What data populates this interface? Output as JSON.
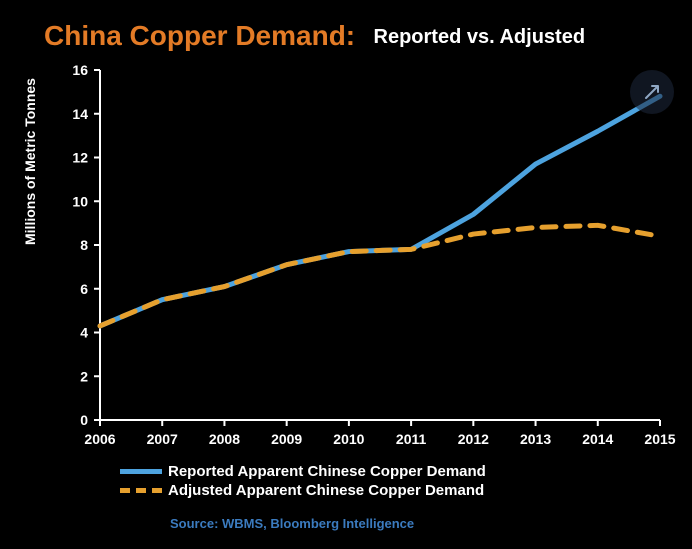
{
  "title": {
    "main": "China Copper Demand:",
    "sub": "Reported vs. Adjusted",
    "main_color": "#e37b26",
    "sub_color": "#ffffff",
    "main_fontsize": 28,
    "sub_fontsize": 20
  },
  "chart": {
    "type": "line",
    "background_color": "#000000",
    "ylabel": "Millions of Metric Tonnes",
    "ylabel_fontsize": 14,
    "ylim": [
      0,
      16
    ],
    "ytick_step": 2,
    "categories": [
      "2006",
      "2007",
      "2008",
      "2009",
      "2010",
      "2011",
      "2012",
      "2013",
      "2014",
      "2015"
    ],
    "series": [
      {
        "name": "Reported Apparent Chinese Copper Demand",
        "color": "#4da3df",
        "style": "solid",
        "line_width": 5,
        "values": [
          4.3,
          5.5,
          6.1,
          7.1,
          7.7,
          7.8,
          9.4,
          11.7,
          13.2,
          14.8
        ]
      },
      {
        "name": "Adjusted Apparent Chinese Copper Demand",
        "color": "#e6a02e",
        "style": "dashed",
        "line_width": 5,
        "values": [
          4.3,
          5.5,
          6.1,
          7.1,
          7.7,
          7.8,
          8.5,
          8.8,
          8.9,
          8.4
        ]
      }
    ],
    "axis_color": "#ffffff",
    "tick_fontsize": 14
  },
  "legend": {
    "items": [
      {
        "label": "Reported Apparent Chinese Copper Demand",
        "swatch": "solid"
      },
      {
        "label": "Adjusted Apparent Chinese Copper Demand",
        "swatch": "dashed"
      }
    ]
  },
  "source": "Source: WBMS, Bloomberg Intelligence",
  "source_color": "#3b7bbf",
  "icons": {
    "expand": "expand-icon"
  }
}
